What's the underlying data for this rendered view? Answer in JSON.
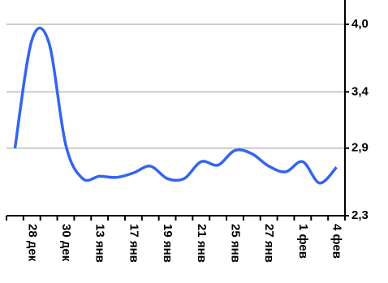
{
  "chart_data": {
    "type": "line",
    "categories": [
      null,
      "28 дек",
      null,
      "30 дек",
      null,
      "13 янв",
      null,
      "17 янв",
      null,
      "19 янв",
      null,
      "21 янв",
      null,
      "25 янв",
      null,
      "27 янв",
      null,
      "1 фев",
      null,
      "4 фев"
    ],
    "series": [
      {
        "color": "#3366ee",
        "values": [
          2.9,
          3.86,
          3.84,
          2.93,
          2.63,
          2.65,
          2.64,
          2.68,
          2.74,
          2.63,
          2.63,
          2.78,
          2.75,
          2.88,
          2.85,
          2.74,
          2.69,
          2.78,
          2.59,
          2.73
        ]
      }
    ],
    "ylim": [
      2.3,
      4.0
    ],
    "yticks": [
      {
        "value": 2.3,
        "label": "2,3"
      },
      {
        "value": 2.9,
        "label": "2,9"
      },
      {
        "value": 3.4,
        "label": "3,4"
      },
      {
        "value": 4.0,
        "label": "4,0"
      }
    ],
    "grid": true,
    "smooth": true
  }
}
